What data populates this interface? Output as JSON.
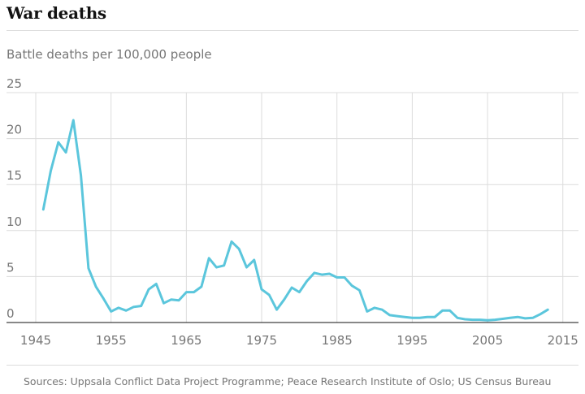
{
  "title": "War deaths",
  "subtitle": "Battle deaths per 100,000 people",
  "source": "Sources: Uppsala Conflict Data Project Programme; Peace Research Institute of Oslo; US Census Bureau",
  "colors": {
    "line": "#5bc6dc",
    "grid": "#dcdcdc",
    "axis": "#121212",
    "label": "#767676"
  },
  "chart_data": {
    "type": "line",
    "title": "War deaths",
    "subtitle": "Battle deaths per 100,000 people",
    "xlabel": "",
    "ylabel": "",
    "xlim": [
      1945,
      2016
    ],
    "ylim": [
      0,
      25
    ],
    "x_ticks": [
      1945,
      1955,
      1965,
      1975,
      1985,
      1995,
      2005,
      2015
    ],
    "y_ticks": [
      0,
      5,
      10,
      15,
      20,
      25
    ],
    "grid": true,
    "series": [
      {
        "x": [
          1946,
          1947,
          1948,
          1949,
          1950,
          1951,
          1952,
          1953,
          1954,
          1955,
          1956,
          1957,
          1958,
          1959,
          1960,
          1961,
          1962,
          1963,
          1964,
          1965,
          1966,
          1967,
          1968,
          1969,
          1970,
          1971,
          1972,
          1973,
          1974,
          1975,
          1976,
          1977,
          1978,
          1979,
          1980,
          1981,
          1982,
          1983,
          1984,
          1985,
          1986,
          1987,
          1988,
          1989,
          1990,
          1991,
          1992,
          1993,
          1994,
          1995,
          1996,
          1997,
          1998,
          1999,
          2000,
          2001,
          2002,
          2003,
          2004,
          2005,
          2006,
          2007,
          2008,
          2009,
          2010,
          2011,
          2012,
          2013
        ],
        "values": [
          12.3,
          16.5,
          19.6,
          18.5,
          22.0,
          16.0,
          5.9,
          3.9,
          2.6,
          1.2,
          1.6,
          1.3,
          1.7,
          1.8,
          3.6,
          4.2,
          2.1,
          2.5,
          2.4,
          3.3,
          3.3,
          3.9,
          7.0,
          6.0,
          6.2,
          8.8,
          8.0,
          6.0,
          6.8,
          3.6,
          3.0,
          1.4,
          2.5,
          3.8,
          3.3,
          4.5,
          5.4,
          5.2,
          5.3,
          4.9,
          4.9,
          4.0,
          3.5,
          1.2,
          1.6,
          1.4,
          0.8,
          0.7,
          0.6,
          0.5,
          0.5,
          0.6,
          0.6,
          1.3,
          1.3,
          0.5,
          0.35,
          0.3,
          0.3,
          0.25,
          0.3,
          0.4,
          0.5,
          0.6,
          0.45,
          0.5,
          0.9,
          1.4
        ]
      }
    ]
  }
}
